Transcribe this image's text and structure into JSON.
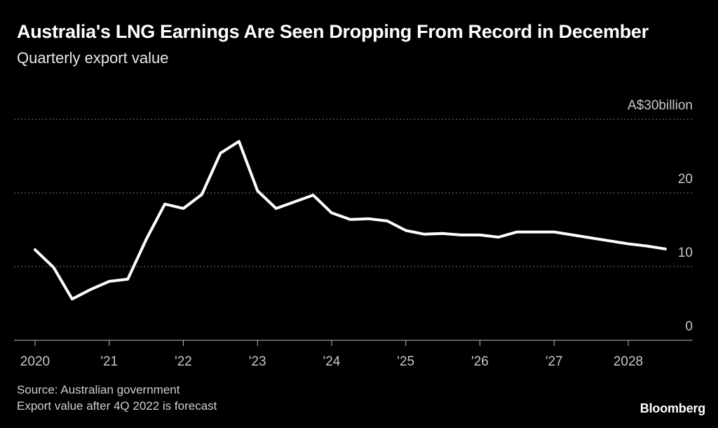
{
  "header": {
    "title": "Australia's LNG Earnings Are Seen Dropping From Record in December",
    "subtitle": "Quarterly export value"
  },
  "footer": {
    "source": "Source: Australian government",
    "note": "Export value after 4Q 2022 is forecast",
    "logo": "Bloomberg"
  },
  "colors": {
    "background": "#000000",
    "line": "#ffffff",
    "grid": "#7a7a7a",
    "text": "#ffffff",
    "muted": "#c8c8c8"
  },
  "chart_data": {
    "type": "line",
    "title": "Australia's LNG Earnings Are Seen Dropping From Record in December",
    "subtitle": "Quarterly export value",
    "xlabel": "",
    "ylabel": "",
    "xlim": [
      2020.0,
      2028.9
    ],
    "ylim": [
      0,
      30
    ],
    "y_unit_label": "A$30billion",
    "y_ticks": [
      {
        "value": 30,
        "label": "A$30billion"
      },
      {
        "value": 20,
        "label": "20"
      },
      {
        "value": 10,
        "label": "10"
      },
      {
        "value": 0,
        "label": "0"
      }
    ],
    "x_ticks": [
      {
        "value": 2020,
        "label": "2020"
      },
      {
        "value": 2021,
        "label": "'21"
      },
      {
        "value": 2022,
        "label": "'22"
      },
      {
        "value": 2023,
        "label": "'23"
      },
      {
        "value": 2024,
        "label": "'24"
      },
      {
        "value": 2025,
        "label": "'25"
      },
      {
        "value": 2026,
        "label": "'26"
      },
      {
        "value": 2027,
        "label": "'27"
      },
      {
        "value": 2028,
        "label": "2028"
      }
    ],
    "grid": true,
    "series": [
      {
        "name": "Quarterly export value",
        "x": [
          2020.0,
          2020.25,
          2020.5,
          2020.75,
          2021.0,
          2021.25,
          2021.5,
          2021.75,
          2022.0,
          2022.25,
          2022.5,
          2022.75,
          2023.0,
          2023.25,
          2023.5,
          2023.75,
          2024.0,
          2024.25,
          2024.5,
          2024.75,
          2025.0,
          2025.25,
          2025.5,
          2025.75,
          2026.0,
          2026.25,
          2026.5,
          2026.75,
          2027.0,
          2027.25,
          2027.5,
          2027.75,
          2028.0,
          2028.25,
          2028.5
        ],
        "values": [
          12.3,
          9.9,
          5.6,
          6.9,
          8.0,
          8.3,
          13.7,
          18.5,
          17.9,
          19.8,
          25.4,
          27.0,
          20.3,
          17.9,
          18.8,
          19.7,
          17.3,
          16.4,
          16.5,
          16.2,
          14.9,
          14.4,
          14.5,
          14.3,
          14.3,
          14.0,
          14.7,
          14.7,
          14.7,
          14.3,
          13.9,
          13.5,
          13.1,
          12.8,
          12.4
        ]
      }
    ]
  }
}
